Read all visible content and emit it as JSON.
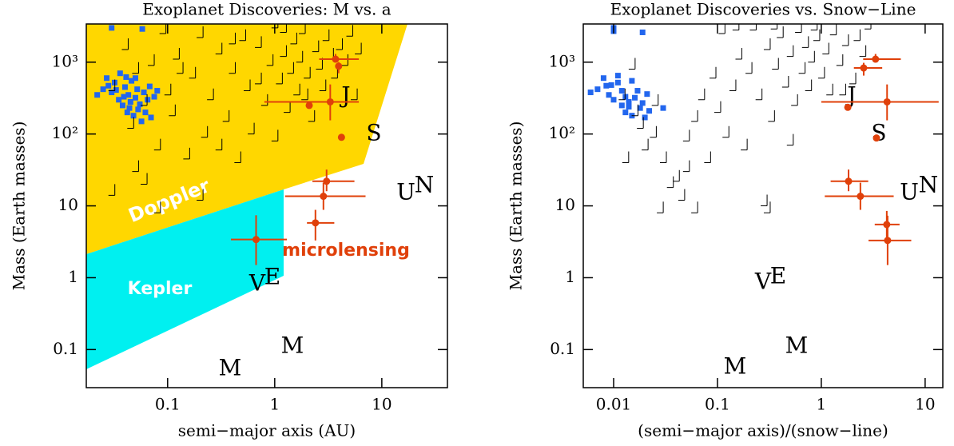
{
  "chart_data": [
    {
      "type": "scatter",
      "title": "Exoplanet Discoveries: M vs. a",
      "xlabel": "semi−major axis (AU)",
      "ylabel": "Mass (Earth masses)",
      "xscale": "log",
      "yscale": "log",
      "xlim": [
        0.0174,
        41
      ],
      "ylim": [
        0.0295,
        3400
      ],
      "xticks": [
        0.1,
        1,
        10
      ],
      "yticks": [
        0.1,
        1,
        10,
        {
          "value": 100,
          "label": "10²"
        },
        {
          "value": 1000,
          "label": "10³"
        }
      ],
      "series": [
        {
          "color": "#2266ee",
          "marker": "square",
          "x": [
            0.03,
            0.058,
            0.022,
            0.025,
            0.027,
            0.03,
            0.032,
            0.035,
            0.036,
            0.038,
            0.04,
            0.042,
            0.043,
            0.045,
            0.046,
            0.048,
            0.05,
            0.052,
            0.053,
            0.055,
            0.057,
            0.06,
            0.062,
            0.065,
            0.068,
            0.07,
            0.075,
            0.08,
            0.028,
            0.033,
            0.041,
            0.05,
            0.044,
            0.039
          ],
          "values": [
            3000,
            2900,
            350,
            420,
            600,
            380,
            520,
            300,
            700,
            250,
            450,
            200,
            350,
            280,
            550,
            180,
            320,
            420,
            220,
            260,
            150,
            380,
            200,
            300,
            460,
            170,
            330,
            400,
            470,
            410,
            620,
            600,
            230,
            330
          ]
        },
        {
          "color": "#000000",
          "marker": "limit",
          "x": [
            0.03,
            0.04,
            0.05,
            0.045,
            0.06,
            0.07,
            0.08,
            0.09,
            0.1,
            0.11,
            0.12,
            0.15,
            0.17,
            0.2,
            0.22,
            0.25,
            0.3,
            0.35,
            0.4,
            0.45,
            0.5,
            0.55,
            0.6,
            0.7,
            0.8,
            0.9,
            1.0,
            1.1,
            1.2,
            1.3,
            1.4,
            1.5,
            1.6,
            1.7,
            1.8,
            2.0,
            2.2,
            2.4,
            2.6,
            2.8,
            3.0,
            3.3,
            3.6,
            4.0,
            4.5,
            5.0,
            5.5,
            6,
            0.05,
            0.3,
            0.08,
            0.03,
            0.2,
            0.06,
            1.0,
            0.13,
            0.7,
            1.9,
            0.4,
            1.2
          ],
          "values": [
            400,
            1500,
            700,
            120,
            250,
            900,
            60,
            2500,
            350,
            180,
            1100,
            45,
            600,
            2200,
            90,
            300,
            1300,
            150,
            700,
            40,
            2000,
            400,
            100,
            1600,
            250,
            900,
            3000,
            500,
            1200,
            200,
            700,
            1800,
            350,
            1000,
            2500,
            600,
            150,
            1400,
            800,
            400,
            2000,
            1100,
            600,
            1500,
            900,
            2300,
            300,
            1300,
            30,
            60,
            8,
            14,
            12,
            20,
            80,
            700,
            500,
            300,
            1800,
            2600
          ]
        },
        {
          "color": "#e0400a",
          "marker": "circle",
          "x": [
            3.7,
            3.95,
            2.1,
            3.3,
            4.2,
            3.05,
            2.85,
            2.4,
            0.67
          ],
          "values": [
            1100,
            880,
            250,
            280,
            90,
            22,
            13.6,
            5.8,
            3.4
          ],
          "xerr": [
            [
              1.1,
              2.4
            ],
            [
              0,
              0
            ],
            [
              0,
              0
            ],
            [
              2.5,
              2.8
            ],
            [
              0,
              0
            ],
            [
              0.8,
              2.5
            ],
            [
              1.6,
              4.2
            ],
            [
              0.4,
              1.2
            ],
            [
              0.28,
              0.63
            ]
          ],
          "yerr": [
            [
              100,
              200
            ],
            [
              180,
              120
            ],
            [
              0,
              0
            ],
            [
              125,
              210
            ],
            [
              0,
              0
            ],
            [
              6,
              10
            ],
            [
              4.8,
              7.4
            ],
            [
              2.5,
              3
            ],
            [
              1.9,
              4
            ]
          ]
        }
      ],
      "annotations": [
        {
          "text": "Doppler",
          "color": "#ffffff"
        },
        {
          "text": "Kepler",
          "color": "#ffffff"
        },
        {
          "text": "microlensing",
          "color": "#e0400a"
        },
        {
          "text": "M",
          "color": "#000000"
        },
        {
          "text": "V",
          "color": "#000000"
        },
        {
          "text": "E",
          "color": "#000000"
        },
        {
          "text": "M",
          "color": "#000000"
        },
        {
          "text": "J",
          "color": "#000000"
        },
        {
          "text": "S",
          "color": "#000000"
        },
        {
          "text": "U",
          "color": "#000000"
        },
        {
          "text": "N",
          "color": "#000000"
        }
      ]
    },
    {
      "type": "scatter",
      "title": "Exoplanet Discoveries vs. Snow−Line",
      "xlabel": "(semi−major axis)/(snow−line)",
      "ylabel": "Mass (Earth masses)",
      "xscale": "log",
      "yscale": "log",
      "xlim": [
        0.0051,
        14.8
      ],
      "ylim": [
        0.0295,
        3400
      ],
      "xticks": [
        0.01,
        0.1,
        1,
        10
      ],
      "yticks": [
        0.1,
        1,
        10,
        {
          "value": 100,
          "label": "10²"
        },
        {
          "value": 1000,
          "label": "10³"
        }
      ],
      "series": [
        {
          "color": "#2266ee",
          "marker": "square",
          "x": [
            0.01,
            0.01,
            0.019,
            0.007,
            0.008,
            0.009,
            0.0095,
            0.01,
            0.011,
            0.012,
            0.012,
            0.013,
            0.013,
            0.014,
            0.015,
            0.015,
            0.016,
            0.017,
            0.018,
            0.019,
            0.02,
            0.021,
            0.022,
            0.03,
            0.006,
            0.0085,
            0.011,
            0.014
          ],
          "values": [
            3000,
            2700,
            2600,
            420,
            600,
            350,
            480,
            300,
            520,
            250,
            400,
            200,
            330,
            280,
            550,
            180,
            320,
            400,
            230,
            270,
            170,
            360,
            210,
            230,
            380,
            470,
            650,
            240
          ]
        },
        {
          "color": "#000000",
          "marker": "limit",
          "x": [
            0.015,
            0.018,
            0.02,
            0.025,
            0.03,
            0.035,
            0.04,
            0.045,
            0.05,
            0.06,
            0.07,
            0.08,
            0.09,
            0.1,
            0.11,
            0.12,
            0.14,
            0.16,
            0.18,
            0.2,
            0.22,
            0.25,
            0.28,
            0.3,
            0.33,
            0.36,
            0.4,
            0.45,
            0.5,
            0.55,
            0.6,
            0.65,
            0.7,
            0.75,
            0.8,
            0.9,
            1.0,
            1.1,
            1.2,
            1.3,
            1.5,
            1.7,
            2.0,
            2.2,
            2.5,
            2.8,
            0.012,
            0.016,
            0.024,
            0.028,
            0.05,
            0.15,
            0.35,
            0.5,
            0.85,
            1.6,
            0.013,
            0.06,
            0.3
          ],
          "values": [
            800,
            120,
            60,
            250,
            40,
            18,
            22,
            12,
            80,
            150,
            300,
            40,
            600,
            200,
            2500,
            90,
            400,
            1100,
            60,
            700,
            2800,
            300,
            10,
            1500,
            150,
            800,
            2200,
            450,
            1200,
            250,
            2600,
            700,
            1600,
            400,
            1000,
            2000,
            600,
            1300,
            350,
            2400,
            900,
            1700,
            500,
            2000,
            1200,
            2900,
            300,
            180,
            90,
            8,
            30,
            2800,
            2900,
            70,
            2800,
            350,
            40,
            8,
            8
          ]
        },
        {
          "color": "#e0400a",
          "marker": "circle",
          "x": [
            3.33,
            2.56,
            1.8,
            4.3,
            3.4,
            1.83,
            2.38,
            4.27,
            4.35
          ],
          "values": [
            1100,
            830,
            235,
            280,
            88,
            22,
            13.6,
            5.5,
            3.3
          ],
          "xerr": [
            [
              0.8,
              2.5
            ],
            [
              0.5,
              1.3
            ],
            [
              0,
              0
            ],
            [
              3.3,
              9.2
            ],
            [
              0,
              0
            ],
            [
              0.6,
              1.0
            ],
            [
              1.3,
              2.6
            ],
            [
              1.0,
              1.4
            ],
            [
              1.5,
              3.0
            ]
          ],
          "yerr": [
            [
              100,
              200
            ],
            [
              180,
              150
            ],
            [
              0,
              0
            ],
            [
              125,
              210
            ],
            [
              0,
              0
            ],
            [
              6,
              10
            ],
            [
              4.8,
              7.4
            ],
            [
              2.3,
              3
            ],
            [
              1.8,
              4
            ]
          ]
        }
      ],
      "annotations": [
        {
          "text": "M",
          "color": "#000000"
        },
        {
          "text": "V",
          "color": "#000000"
        },
        {
          "text": "E",
          "color": "#000000"
        },
        {
          "text": "M",
          "color": "#000000"
        },
        {
          "text": "J",
          "color": "#000000"
        },
        {
          "text": "S",
          "color": "#000000"
        },
        {
          "text": "U",
          "color": "#000000"
        },
        {
          "text": "N",
          "color": "#000000"
        }
      ]
    }
  ]
}
